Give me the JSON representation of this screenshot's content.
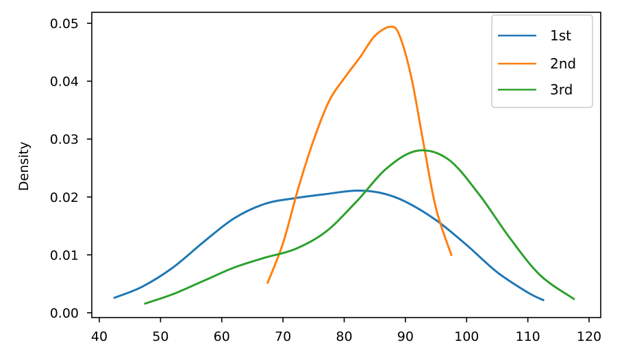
{
  "chart_data": {
    "type": "line",
    "title": "",
    "xlabel": "",
    "ylabel": "Density",
    "xlim": [
      38.5,
      121
    ],
    "ylim": [
      -0.0008,
      0.0518
    ],
    "grid": false,
    "legend_position": "upper right",
    "x_ticks": [
      40,
      50,
      60,
      70,
      80,
      90,
      100,
      110,
      120
    ],
    "x_tick_labels": [
      "40",
      "50",
      "60",
      "70",
      "80",
      "90",
      "100",
      "110",
      "120"
    ],
    "y_ticks": [
      0.0,
      0.01,
      0.02,
      0.03,
      0.04,
      0.05
    ],
    "y_tick_labels": [
      "0.00",
      "0.01",
      "0.02",
      "0.03",
      "0.04",
      "0.05"
    ],
    "series": [
      {
        "name": "1st",
        "color": "#1f77b4",
        "x": [
          42.5,
          47,
          52,
          57,
          62,
          67,
          72,
          77,
          82,
          86,
          90,
          95,
          100,
          105,
          110,
          112.5
        ],
        "y": [
          0.0026,
          0.0045,
          0.0078,
          0.0122,
          0.0163,
          0.0188,
          0.0198,
          0.0205,
          0.0211,
          0.0207,
          0.0192,
          0.016,
          0.0117,
          0.007,
          0.0035,
          0.0022
        ]
      },
      {
        "name": "2nd",
        "color": "#ff7f0e",
        "x": [
          67.5,
          70,
          72.5,
          75,
          77.5,
          80,
          82.5,
          85,
          87.5,
          89,
          91,
          93,
          95,
          97.5
        ],
        "y": [
          0.0052,
          0.012,
          0.0215,
          0.0298,
          0.0365,
          0.0405,
          0.044,
          0.0478,
          0.0494,
          0.048,
          0.0405,
          0.029,
          0.018,
          0.01
        ]
      },
      {
        "name": "3rd",
        "color": "#2ca02c",
        "x": [
          47.5,
          52,
          57,
          62,
          67,
          72,
          77,
          82,
          87,
          92,
          97,
          102,
          107,
          112,
          117.5
        ],
        "y": [
          0.0016,
          0.0032,
          0.0055,
          0.0078,
          0.0095,
          0.011,
          0.014,
          0.0192,
          0.025,
          0.028,
          0.0265,
          0.0205,
          0.013,
          0.0065,
          0.0024
        ]
      }
    ]
  },
  "legend": {
    "items": [
      {
        "label": "1st",
        "color": "#1f77b4"
      },
      {
        "label": "2nd",
        "color": "#ff7f0e"
      },
      {
        "label": "3rd",
        "color": "#2ca02c"
      }
    ]
  },
  "axes": {
    "ylabel": "Density"
  }
}
